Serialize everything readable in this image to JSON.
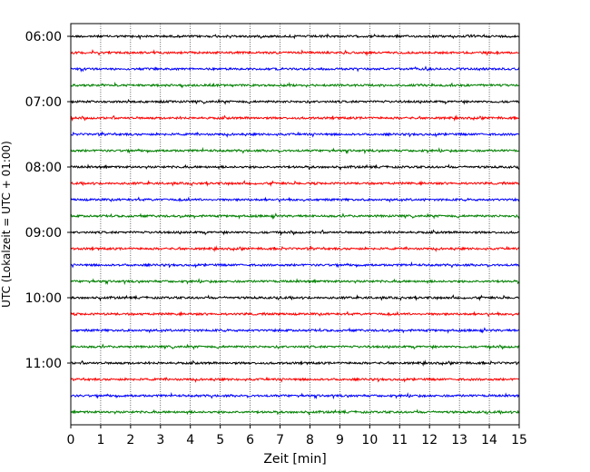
{
  "chart_data": {
    "type": "line",
    "xlabel": "Zeit  [min]",
    "ylabel": "UTC (Lokalzeit = UTC + 01:00)",
    "xlim": [
      0,
      15
    ],
    "xticks": [
      0,
      1,
      2,
      3,
      4,
      5,
      6,
      7,
      8,
      9,
      10,
      11,
      12,
      13,
      14,
      15
    ],
    "xtick_labels": [
      "0",
      "1",
      "2",
      "3",
      "4",
      "5",
      "6",
      "7",
      "8",
      "9",
      "10",
      "11",
      "12",
      "13",
      "14",
      "15"
    ],
    "ytick_labels": [
      "06:00",
      "07:00",
      "08:00",
      "09:00",
      "10:00",
      "11:00"
    ],
    "trace_interval_min": 15,
    "grid_x": "dotted",
    "colors": [
      "#000000",
      "#ff0000",
      "#0000ff",
      "#008000"
    ],
    "traces": [
      {
        "start": "06:00",
        "color": "#000000"
      },
      {
        "start": "06:15",
        "color": "#ff0000"
      },
      {
        "start": "06:30",
        "color": "#0000ff"
      },
      {
        "start": "06:45",
        "color": "#008000"
      },
      {
        "start": "07:00",
        "color": "#000000"
      },
      {
        "start": "07:15",
        "color": "#ff0000"
      },
      {
        "start": "07:30",
        "color": "#0000ff"
      },
      {
        "start": "07:45",
        "color": "#008000"
      },
      {
        "start": "08:00",
        "color": "#000000"
      },
      {
        "start": "08:15",
        "color": "#ff0000"
      },
      {
        "start": "08:30",
        "color": "#0000ff"
      },
      {
        "start": "08:45",
        "color": "#008000"
      },
      {
        "start": "09:00",
        "color": "#000000"
      },
      {
        "start": "09:15",
        "color": "#ff0000"
      },
      {
        "start": "09:30",
        "color": "#0000ff"
      },
      {
        "start": "09:45",
        "color": "#008000"
      },
      {
        "start": "10:00",
        "color": "#000000"
      },
      {
        "start": "10:15",
        "color": "#ff0000"
      },
      {
        "start": "10:30",
        "color": "#0000ff"
      },
      {
        "start": "10:45",
        "color": "#008000"
      },
      {
        "start": "11:00",
        "color": "#000000"
      },
      {
        "start": "11:15",
        "color": "#ff0000"
      },
      {
        "start": "11:30",
        "color": "#0000ff"
      },
      {
        "start": "11:45",
        "color": "#008000"
      }
    ]
  }
}
